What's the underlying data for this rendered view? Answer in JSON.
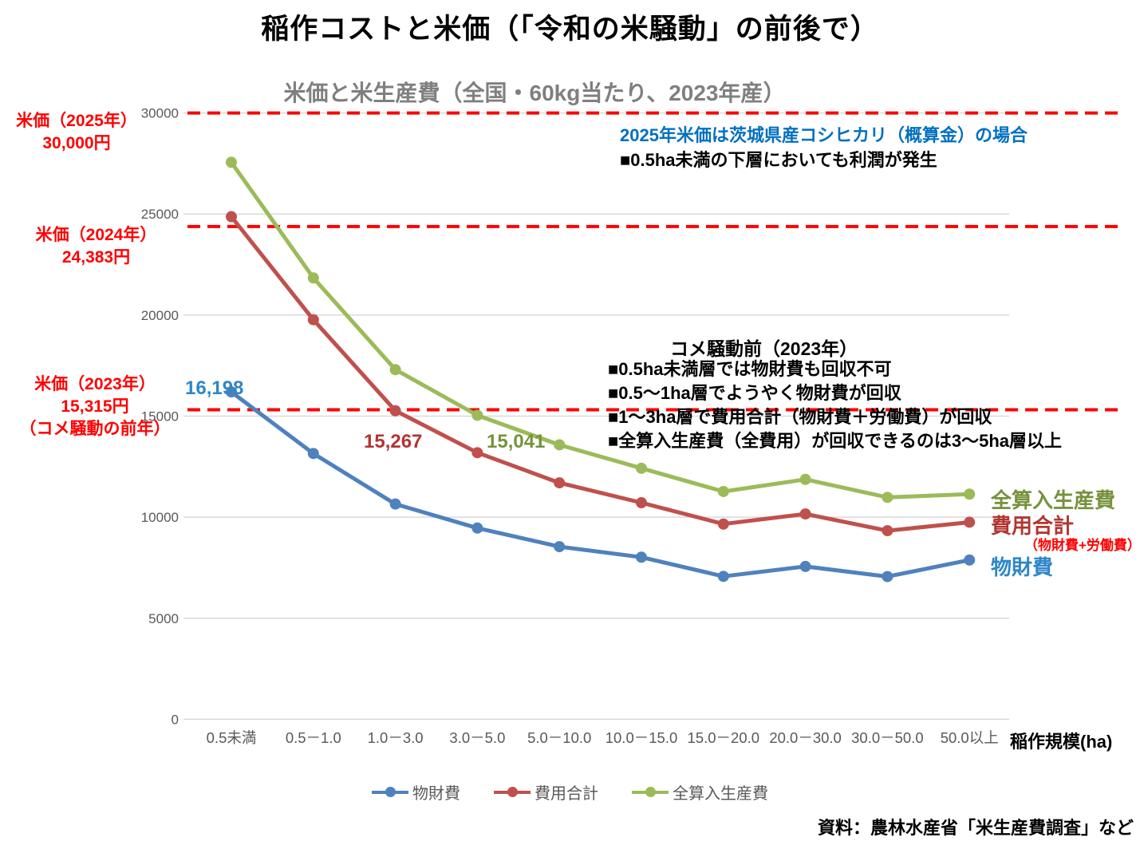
{
  "page": {
    "title": "稲作コストと米価（「令和の米騒動」の前後で）",
    "source": "資料：農林水産省「米生産費調査」など"
  },
  "colors": {
    "red_accent": "#FF0000",
    "blue_note": "#0070C0",
    "subtitle_gray": "#7F7F7F",
    "axis_gray": "#595959",
    "gridline": "#D9D9D9"
  },
  "chart_data": {
    "type": "line",
    "title": "米価と米生産費（全国・60kg当たり、2023年産）",
    "xlabel": "稲作規模(ha)",
    "ylabel": "",
    "ylim": [
      0,
      30000
    ],
    "yticks": [
      0,
      5000,
      10000,
      15000,
      20000,
      25000,
      30000
    ],
    "grid": "horizontal",
    "legend_position": "bottom",
    "categories": [
      "0.5未満",
      "0.5－1.0",
      "1.0－3.0",
      "3.0－5.0",
      "5.0－10.0",
      "10.0－15.0",
      "15.0－20.0",
      "20.0－30.0",
      "30.0－50.0",
      "50.0以上"
    ],
    "series": [
      {
        "name": "物財費",
        "color": "#4F81BD",
        "label_color": "#2E86C8",
        "values": [
          16198,
          13150,
          10650,
          9460,
          8540,
          8020,
          7070,
          7560,
          7060,
          7880
        ]
      },
      {
        "name": "費用合計",
        "sub_label": "（物財費+労働費）",
        "color": "#C0504D",
        "label_color": "#B23530",
        "sub_label_color": "#FF0000",
        "values": [
          24870,
          19770,
          15267,
          13190,
          11700,
          10715,
          9660,
          10160,
          9330,
          9750
        ]
      },
      {
        "name": "全算入生産費",
        "color": "#9BBB59",
        "label_color": "#76923C",
        "values": [
          27560,
          21840,
          17300,
          15041,
          13580,
          12420,
          11270,
          11870,
          10980,
          11140
        ]
      }
    ],
    "data_labels": [
      {
        "series": "物財費",
        "category": "0.5未満",
        "text": "16,198"
      },
      {
        "series": "費用合計",
        "category": "1.0－3.0",
        "text": "15,267"
      },
      {
        "series": "全算入生産費",
        "category": "3.0－5.0",
        "text": "15,041"
      }
    ],
    "reference_lines": [
      {
        "label": "米価（2025年）",
        "sublabel": "30,000円",
        "value": 30000,
        "color": "#FF0000",
        "style": "dashed"
      },
      {
        "label": "米価（2024年）",
        "sublabel": "24,383円",
        "value": 24383,
        "color": "#FF0000",
        "style": "dashed"
      },
      {
        "label": "米価（2023年）",
        "sublabel": "15,315円",
        "note": "（コメ騒動の前年）",
        "value": 15315,
        "color": "#FF0000",
        "style": "dashed"
      }
    ],
    "legend": [
      "物財費",
      "費用合計",
      "全算入生産費"
    ]
  },
  "annotations": {
    "top_note_blue": "2025年米価は茨城県産コシヒカリ（概算金）の場合",
    "top_note_black": "■0.5ha未満の下層においても利潤が発生",
    "mid_title": "コメ騒動前（2023年）",
    "mid_bullets": [
      "■0.5ha未満層では物財費も回収不可",
      "■0.5～1ha層でようやく物財費が回収",
      "■1～3ha層で費用合計（物財費＋労働費）が回収",
      "■全算入生産費（全費用）が回収できるのは3～5ha層以上"
    ]
  }
}
